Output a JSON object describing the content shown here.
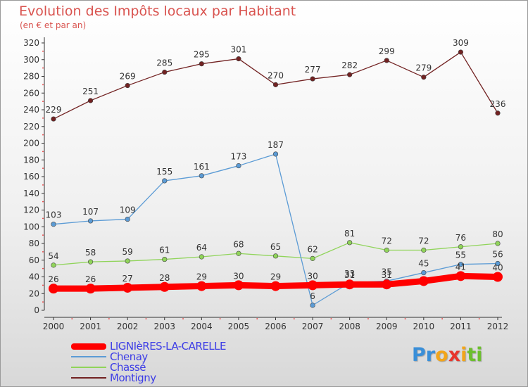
{
  "title": "Evolution des Impôts locaux par Habitant",
  "subtitle": "(en € et par an)",
  "logo": {
    "text": "Proxiti",
    "letters": [
      "P",
      "r",
      "o",
      "x",
      "i",
      "t",
      "i"
    ],
    "colors": [
      "#3a8fd8",
      "#3a8fd8",
      "#f2a51a",
      "#e8352c",
      "#f2a51a",
      "#6cbf2e",
      "#6cbf2e"
    ]
  },
  "chart_data": {
    "type": "line",
    "x": [
      "2000",
      "2001",
      "2002",
      "2003",
      "2004",
      "2005",
      "2006",
      "2007",
      "2008",
      "2009",
      "2010",
      "2011",
      "2012"
    ],
    "ylim": [
      0,
      320
    ],
    "yticks": [
      0,
      20,
      40,
      60,
      80,
      100,
      120,
      140,
      160,
      180,
      200,
      220,
      240,
      260,
      280,
      300,
      320
    ],
    "grid": false,
    "legend_position": "bottom-left",
    "series": [
      {
        "name": "LIGNIèRES-LA-CARELLE",
        "color": "#ff0000",
        "values": [
          26,
          26,
          27,
          28,
          29,
          30,
          29,
          30,
          31,
          31,
          35,
          41,
          40
        ],
        "labels": [
          "26",
          "26",
          "27",
          "28",
          "29",
          "30",
          "29",
          "30",
          "31",
          "31",
          "",
          "41",
          "40"
        ]
      },
      {
        "name": "Chenay",
        "color": "#5b9bd5",
        "values": [
          103,
          107,
          109,
          155,
          161,
          173,
          187,
          6,
          33,
          35,
          45,
          55,
          56
        ],
        "labels": [
          "103",
          "107",
          "109",
          "155",
          "161",
          "173",
          "187",
          "6",
          "33",
          "35",
          "45",
          "55",
          "56"
        ]
      },
      {
        "name": "Chassé",
        "color": "#90d45a",
        "values": [
          54,
          58,
          59,
          61,
          64,
          68,
          65,
          62,
          81,
          72,
          72,
          76,
          80
        ],
        "labels": [
          "54",
          "58",
          "59",
          "61",
          "64",
          "68",
          "65",
          "62",
          "81",
          "72",
          "72",
          "76",
          "80"
        ]
      },
      {
        "name": "Montigny",
        "color": "#722222",
        "values": [
          229,
          251,
          269,
          285,
          295,
          301,
          270,
          277,
          282,
          299,
          279,
          309,
          236
        ],
        "labels": [
          "229",
          "251",
          "269",
          "285",
          "295",
          "301",
          "270",
          "277",
          "282",
          "299",
          "279",
          "309",
          "236"
        ]
      }
    ]
  }
}
